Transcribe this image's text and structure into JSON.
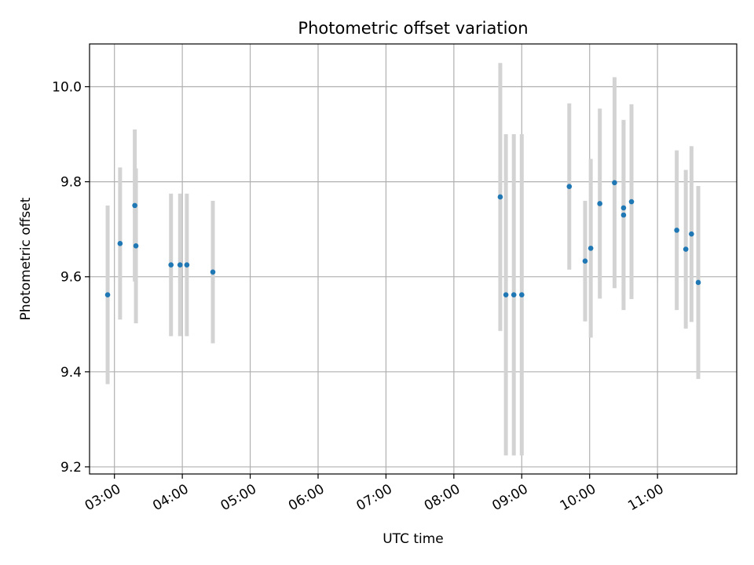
{
  "chart_data": {
    "type": "scatter",
    "title": "Photometric offset variation",
    "xlabel": "UTC time",
    "ylabel": "Photometric offset",
    "x_unit": "UTC time (HH:MM)",
    "xlim": [
      "02:38",
      "12:10"
    ],
    "ylim": [
      9.185,
      10.09
    ],
    "x_ticks": [
      "03:00",
      "04:00",
      "05:00",
      "06:00",
      "07:00",
      "08:00",
      "09:00",
      "10:00",
      "11:00"
    ],
    "y_ticks": [
      9.2,
      9.4,
      9.6,
      9.8,
      10.0
    ],
    "y_tick_labels": [
      "9.2",
      "9.4",
      "9.6",
      "9.8",
      "10.0"
    ],
    "grid": true,
    "marker_color": "#1f77b4",
    "errorbar_color": "#d3d3d3",
    "series": [
      {
        "points": [
          {
            "x": "02:54",
            "y": 9.562,
            "err": 0.188
          },
          {
            "x": "03:05",
            "y": 9.67,
            "err": 0.16
          },
          {
            "x": "03:18",
            "y": 9.75,
            "err": 0.16
          },
          {
            "x": "03:19",
            "y": 9.665,
            "err": 0.163
          },
          {
            "x": "03:50",
            "y": 9.625,
            "err": 0.15
          },
          {
            "x": "03:58",
            "y": 9.625,
            "err": 0.15
          },
          {
            "x": "04:04",
            "y": 9.625,
            "err": 0.15
          },
          {
            "x": "04:27",
            "y": 9.61,
            "err": 0.15
          },
          {
            "x": "08:41",
            "y": 9.768,
            "err": 0.282
          },
          {
            "x": "08:46",
            "y": 9.562,
            "err": 0.338
          },
          {
            "x": "08:53",
            "y": 9.562,
            "err": 0.338
          },
          {
            "x": "09:00",
            "y": 9.562,
            "err": 0.338
          },
          {
            "x": "09:42",
            "y": 9.79,
            "err": 0.175
          },
          {
            "x": "09:56",
            "y": 9.633,
            "err": 0.127
          },
          {
            "x": "10:01",
            "y": 9.66,
            "err": 0.188
          },
          {
            "x": "10:09",
            "y": 9.754,
            "err": 0.2
          },
          {
            "x": "10:22",
            "y": 9.798,
            "err": 0.222
          },
          {
            "x": "10:30",
            "y": 9.745,
            "err": 0.185
          },
          {
            "x": "10:30",
            "y": 9.73,
            "err": 0.2
          },
          {
            "x": "10:37",
            "y": 9.758,
            "err": 0.205
          },
          {
            "x": "11:17",
            "y": 9.698,
            "err": 0.168
          },
          {
            "x": "11:25",
            "y": 9.658,
            "err": 0.167
          },
          {
            "x": "11:30",
            "y": 9.69,
            "err": 0.185
          },
          {
            "x": "11:36",
            "y": 9.588,
            "err": 0.203
          }
        ]
      }
    ]
  }
}
